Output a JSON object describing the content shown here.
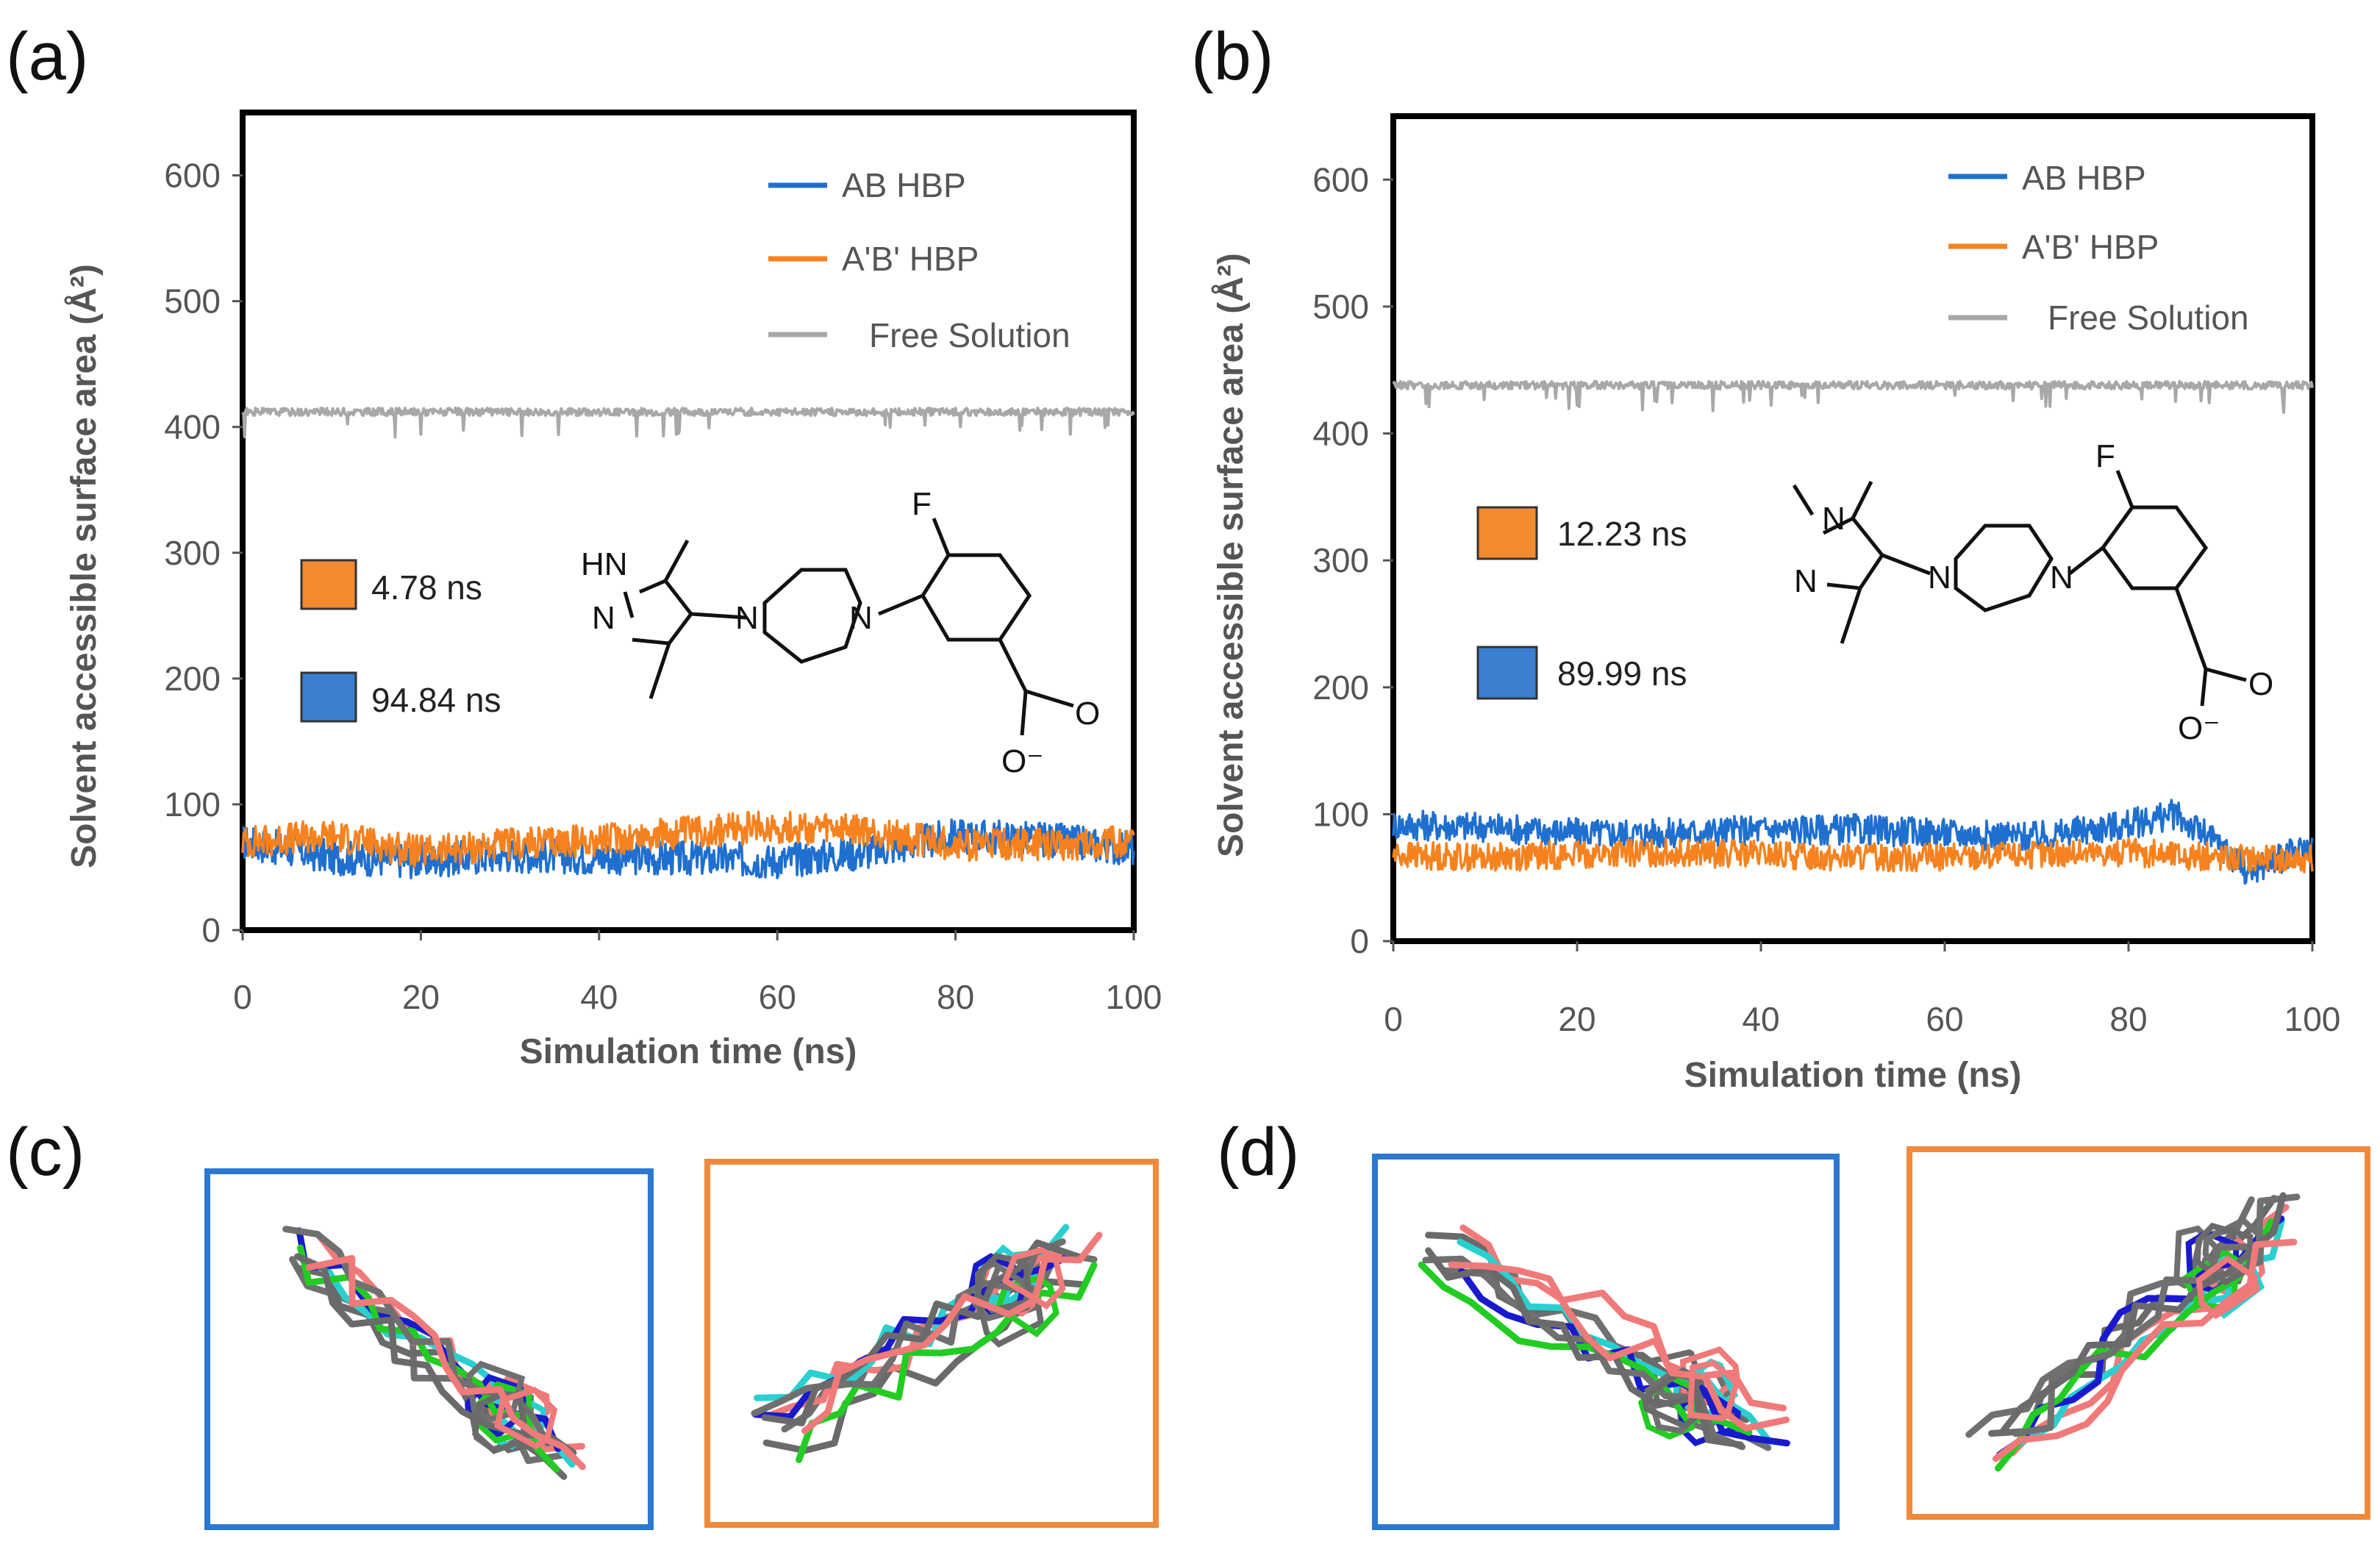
{
  "figure": {
    "panels": [
      {
        "label": "(a)",
        "ylabel": "Solvent accessible surface area (Å²)",
        "xlabel": "Simulation time (ns)",
        "legend": [
          "AB HBP",
          "A'B' HBP",
          "Free Solution"
        ],
        "times": [
          {
            "value": "4.78 ns",
            "swatch_color": "#f28a30"
          },
          {
            "value": "94.84 ns",
            "swatch_color": "#3a7fd0"
          }
        ],
        "molecule": {
          "atoms": [
            "HN",
            "N",
            "N",
            "N",
            "F",
            "O",
            "O⁻"
          ]
        }
      },
      {
        "label": "(b)",
        "ylabel": "Solvent accessible surface area (Å²)",
        "xlabel": "Simulation time (ns)",
        "legend": [
          "AB HBP",
          "A'B' HBP",
          "Free Solution"
        ],
        "times": [
          {
            "value": "12.23 ns",
            "swatch_color": "#f28a30"
          },
          {
            "value": "89.99 ns",
            "swatch_color": "#3a7fd0"
          }
        ],
        "molecule": {
          "atoms": [
            "N",
            "N",
            "N",
            "N",
            "F",
            "O",
            "O⁻"
          ]
        }
      }
    ],
    "bottom_labels": [
      "(c)",
      "(d)"
    ],
    "frame_colors": {
      "blue": "#2b78d0",
      "orange": "#f08a3a"
    }
  },
  "chart_data": [
    {
      "type": "line",
      "title": "(a)",
      "xlabel": "Simulation time (ns)",
      "ylabel": "Solvent accessible surface area (Å²)",
      "xlim": [
        0,
        100
      ],
      "ylim": [
        0,
        650
      ],
      "xticks": [
        0,
        20,
        40,
        60,
        80,
        100
      ],
      "yticks": [
        0,
        100,
        200,
        300,
        400,
        500,
        600
      ],
      "legend_position": "top-right",
      "series": [
        {
          "name": "AB HBP",
          "color": "#1f6fcf",
          "x": [
            0,
            10,
            20,
            30,
            40,
            50,
            60,
            70,
            80,
            90,
            100
          ],
          "values": [
            70,
            58,
            55,
            60,
            58,
            57,
            55,
            62,
            75,
            72,
            65
          ],
          "noise": 14
        },
        {
          "name": "A'B' HBP",
          "color": "#f5821f",
          "x": [
            0,
            10,
            20,
            30,
            40,
            50,
            60,
            70,
            80,
            90,
            100
          ],
          "values": [
            70,
            75,
            62,
            68,
            72,
            78,
            82,
            78,
            68,
            68,
            70
          ],
          "noise": 13
        },
        {
          "name": "Free Solution",
          "color": "#a8a8a8",
          "x": [
            0,
            10,
            20,
            30,
            40,
            50,
            60,
            70,
            80,
            90,
            100
          ],
          "values": [
            412,
            412,
            412,
            412,
            412,
            412,
            412,
            412,
            412,
            412,
            412
          ],
          "noise": 3
        }
      ]
    },
    {
      "type": "line",
      "title": "(b)",
      "xlabel": "Simulation time (ns)",
      "ylabel": "Solvent accessible surface area (Å²)",
      "xlim": [
        0,
        100
      ],
      "ylim": [
        0,
        650
      ],
      "xticks": [
        0,
        20,
        40,
        60,
        80,
        100
      ],
      "yticks": [
        0,
        100,
        200,
        300,
        400,
        500,
        600
      ],
      "legend_position": "top-right",
      "series": [
        {
          "name": "AB HBP",
          "color": "#1f6fcf",
          "x": [
            0,
            10,
            20,
            30,
            40,
            50,
            60,
            70,
            80,
            85,
            90,
            93,
            100
          ],
          "values": [
            92,
            90,
            85,
            85,
            88,
            88,
            85,
            82,
            92,
            100,
            75,
            55,
            75
          ],
          "noise": 12
        },
        {
          "name": "A'B' HBP",
          "color": "#f5821f",
          "x": [
            0,
            10,
            20,
            30,
            40,
            50,
            60,
            70,
            80,
            90,
            100
          ],
          "values": [
            68,
            66,
            68,
            70,
            68,
            66,
            66,
            68,
            70,
            66,
            65
          ],
          "noise": 11
        },
        {
          "name": "Free Solution",
          "color": "#a8a8a8",
          "x": [
            0,
            10,
            20,
            30,
            40,
            50,
            60,
            70,
            80,
            90,
            100
          ],
          "values": [
            438,
            438,
            438,
            438,
            438,
            438,
            438,
            438,
            438,
            438,
            438
          ],
          "noise": 3
        }
      ]
    }
  ]
}
